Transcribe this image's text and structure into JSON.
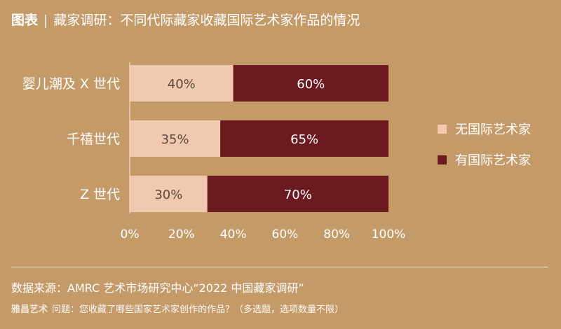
{
  "header": {
    "label": "图表",
    "separator": "|",
    "title": "藏家调研：不同代际藏家收藏国际艺术家作品的情况"
  },
  "chart_data": {
    "type": "bar",
    "orientation": "horizontal",
    "stacked": true,
    "categories": [
      "婴儿潮及 X 世代",
      "千禧世代",
      "Z 世代"
    ],
    "series": [
      {
        "name": "无国际艺术家",
        "values": [
          40,
          35,
          30
        ],
        "color": "#f0c9b0"
      },
      {
        "name": "有国际艺术家",
        "values": [
          60,
          65,
          70
        ],
        "color": "#6b1a1f"
      }
    ],
    "value_labels": [
      [
        "40%",
        "35%",
        "30%"
      ],
      [
        "60%",
        "65%",
        "70%"
      ]
    ],
    "xlim": [
      0,
      100
    ],
    "xticks": [
      0,
      20,
      40,
      60,
      80,
      100
    ],
    "xtick_labels": [
      "0%",
      "20%",
      "40%",
      "60%",
      "80%",
      "100%"
    ],
    "legend_position": "right",
    "grid": false
  },
  "footer": {
    "source": "数据来源：AMRC 艺术市场研究中心“2022 中国藏家调研”",
    "watermark": "雅昌艺术",
    "note": "问题：您收藏了哪些国家艺术家创作的作品？（多选题，选项数量不限）"
  }
}
